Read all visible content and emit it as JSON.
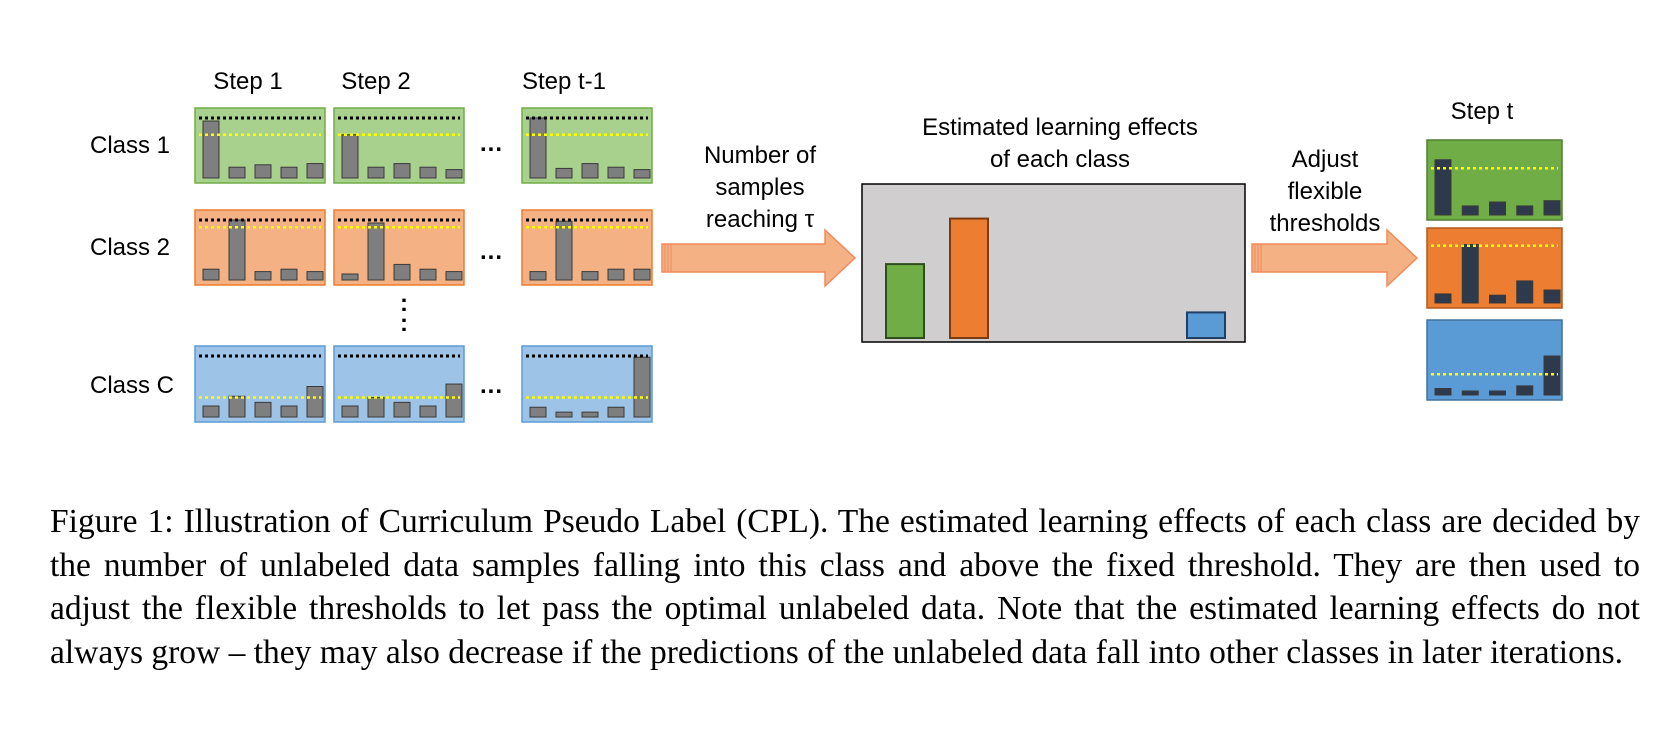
{
  "figure": {
    "step_headers": [
      "Step 1",
      "Step 2",
      "Step t-1"
    ],
    "step_t_header": "Step t",
    "class_labels": [
      "Class 1",
      "Class 2",
      "Class C"
    ],
    "row_ellipsis": "...",
    "vertical_ellipsis": ":",
    "arrow1_label": [
      "Number of",
      "samples",
      "reaching τ"
    ],
    "middle_title": [
      "Estimated learning effects",
      "of each class"
    ],
    "middle_ellipsis": ".......",
    "arrow2_label": [
      "Adjust",
      "flexible",
      "thresholds"
    ],
    "colors": {
      "green_bg": "#a9d18e",
      "orange_bg": "#f4b183",
      "blue_bg": "#9dc3e6",
      "green_border": "#70ad47",
      "orange_border": "#ed7d31",
      "blue_border": "#5b9bd5",
      "grey_bar": "#7f7f7f",
      "dark_bar": "#2e3a4c",
      "panel_grey": "#d0cece",
      "arrow_fill": "#f4b183",
      "threshold_fixed": "#000000",
      "threshold_flexible": "#ffff00"
    },
    "bar_levels": {
      "class1": [
        [
          0.95,
          0.18,
          0.22,
          0.18,
          0.24
        ],
        [
          0.72,
          0.18,
          0.24,
          0.18,
          0.14
        ],
        [
          1.0,
          0.16,
          0.24,
          0.18,
          0.14
        ]
      ],
      "class2": [
        [
          0.18,
          1.0,
          0.14,
          0.18,
          0.14
        ],
        [
          0.1,
          0.95,
          0.26,
          0.18,
          0.14
        ],
        [
          0.14,
          0.98,
          0.14,
          0.18,
          0.18
        ]
      ],
      "classC": [
        [
          0.18,
          0.34,
          0.24,
          0.18,
          0.5
        ],
        [
          0.18,
          0.32,
          0.24,
          0.18,
          0.54
        ],
        [
          0.16,
          0.08,
          0.08,
          0.16,
          0.98
        ]
      ],
      "step_t": [
        [
          0.85,
          0.14,
          0.2,
          0.14,
          0.22
        ],
        [
          0.14,
          0.9,
          0.12,
          0.34,
          0.2
        ],
        [
          0.1,
          0.06,
          0.06,
          0.14,
          0.6
        ]
      ]
    },
    "learning_effects": [
      0.55,
      0.88,
      0.2
    ],
    "flexible_threshold_levels": {
      "class1": 0.72,
      "class2": 0.88,
      "classC": 0.32,
      "step_t": [
        0.72,
        0.88,
        0.32
      ]
    }
  },
  "caption": {
    "text": "Figure 1: Illustration of Curriculum Pseudo Label (CPL). The estimated learning effects of each class are decided by the number of unlabeled data samples falling into this class and above the fixed threshold. They are then used to adjust the flexible thresholds to let pass the optimal unlabeled data. Note that the estimated learning effects do not always grow – they may also decrease if the predictions of the unlabeled data fall into other classes in later iterations."
  }
}
